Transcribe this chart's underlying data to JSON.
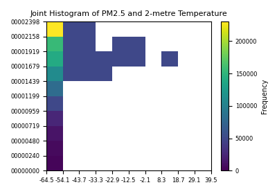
{
  "title": "Joint Histogram of PM2.5 and 2-metre Temperature",
  "colorbar_label": "Frequency",
  "cmap": "viridis",
  "xedges": [
    -64.5,
    -54.1,
    -43.7,
    -33.3,
    -22.9,
    -12.5,
    -2.1,
    8.3,
    18.7,
    29.1,
    39.5
  ],
  "yedges": [
    0,
    240,
    480,
    719,
    959,
    1199,
    1439,
    1679,
    1919,
    2158,
    2398
  ],
  "H": [
    [
      3000,
      0,
      0,
      0,
      0,
      0,
      0,
      0,
      0,
      0
    ],
    [
      6000,
      0,
      0,
      0,
      0,
      0,
      0,
      0,
      0,
      0
    ],
    [
      12000,
      0,
      0,
      0,
      0,
      0,
      0,
      0,
      0,
      0
    ],
    [
      25000,
      0,
      0,
      0,
      0,
      0,
      0,
      0,
      0,
      0
    ],
    [
      50000,
      0,
      0,
      0,
      0,
      0,
      0,
      0,
      0,
      0
    ],
    [
      80000,
      0,
      0,
      0,
      0,
      0,
      0,
      0,
      0,
      0
    ],
    [
      110000,
      50000,
      50000,
      50000,
      0,
      0,
      0,
      0,
      0,
      0
    ],
    [
      140000,
      50000,
      50000,
      50000,
      50000,
      50000,
      0,
      50000,
      0,
      0
    ],
    [
      155000,
      50000,
      50000,
      0,
      50000,
      50000,
      0,
      0,
      0,
      0
    ],
    [
      230000,
      50000,
      50000,
      0,
      0,
      0,
      0,
      0,
      0,
      0
    ]
  ],
  "vmin": 0,
  "vmax": 230000,
  "figsize": [
    4.0,
    2.8
  ],
  "dpi": 100,
  "title_fontsize": 8,
  "tick_fontsize": 6,
  "cbar_label_fontsize": 7
}
